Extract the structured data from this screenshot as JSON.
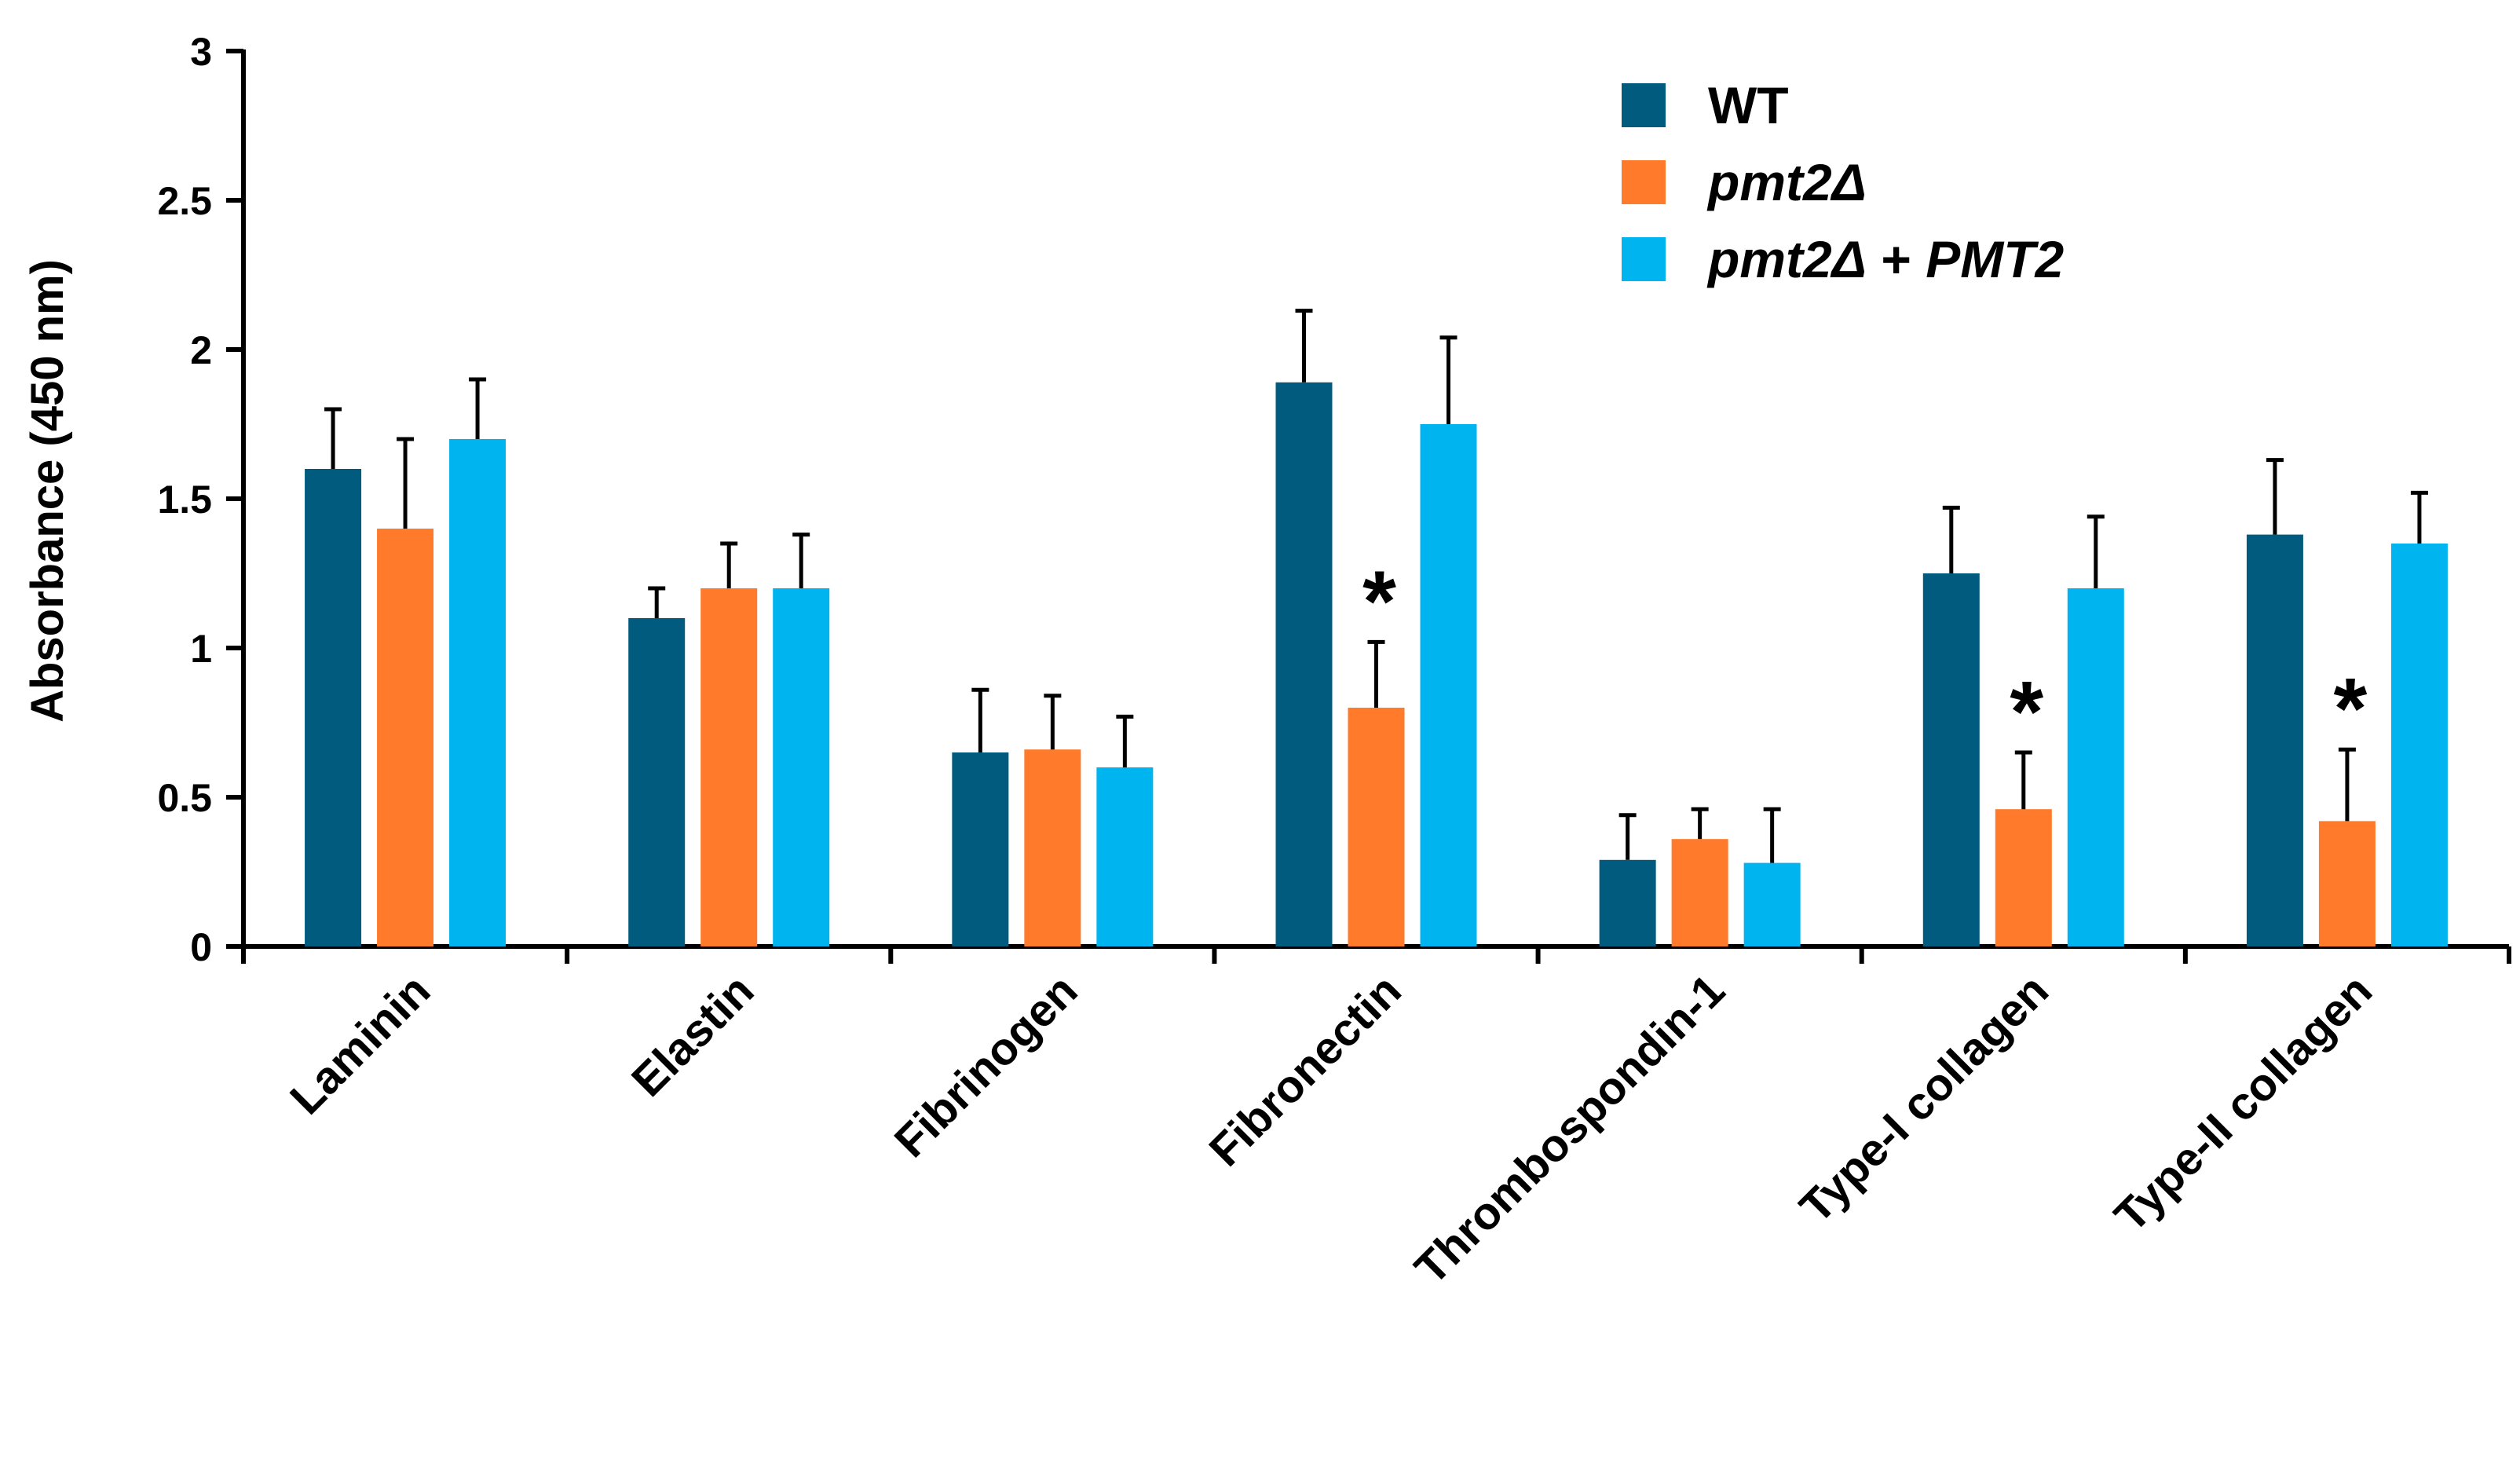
{
  "chart_data": {
    "type": "bar",
    "title": "",
    "xlabel": "",
    "ylabel": "Absorbance (450 nm)",
    "ylim": [
      0,
      3
    ],
    "yticks": [
      "0",
      "0.5",
      "1",
      "1.5",
      "2",
      "2.5",
      "3"
    ],
    "ytick_values": [
      0,
      0.5,
      1,
      1.5,
      2,
      2.5,
      3
    ],
    "grid": false,
    "legend_position": "top-right",
    "categories": [
      "Laminin",
      "Elastin",
      "Fibrinogen",
      "Fibronectin",
      "Thrombospondin-1",
      "Type-I collagen",
      "Type-II collagen"
    ],
    "series": [
      {
        "name": "WT",
        "legend_parts": [
          {
            "text": "WT",
            "italic": false
          }
        ],
        "color": "#005b7f",
        "values": [
          1.6,
          1.1,
          0.65,
          1.89,
          0.29,
          1.25,
          1.38
        ],
        "errors": [
          0.2,
          0.1,
          0.21,
          0.24,
          0.15,
          0.22,
          0.25
        ]
      },
      {
        "name": "pmt2Δ",
        "legend_parts": [
          {
            "text": "pmt2Δ",
            "italic": true
          }
        ],
        "color": "#ff7a2a",
        "values": [
          1.4,
          1.2,
          0.66,
          0.8,
          0.36,
          0.46,
          0.42
        ],
        "errors": [
          0.3,
          0.15,
          0.18,
          0.22,
          0.1,
          0.19,
          0.24
        ]
      },
      {
        "name": "pmt2Δ + PMT2",
        "legend_parts": [
          {
            "text": "pmt2Δ",
            "italic": true
          },
          {
            "text": " + ",
            "italic": false
          },
          {
            "text": "PMT2",
            "italic": true
          }
        ],
        "color": "#00b4f0",
        "values": [
          1.7,
          1.2,
          0.6,
          1.75,
          0.28,
          1.2,
          1.35
        ],
        "errors": [
          0.2,
          0.18,
          0.17,
          0.29,
          0.18,
          0.24,
          0.17
        ]
      }
    ],
    "annotations": [
      {
        "text": "*",
        "category": "Fibronectin",
        "series": "pmt2Δ"
      },
      {
        "text": "*",
        "category": "Type-I collagen",
        "series": "pmt2Δ"
      },
      {
        "text": "*",
        "category": "Type-II collagen",
        "series": "pmt2Δ"
      }
    ]
  }
}
